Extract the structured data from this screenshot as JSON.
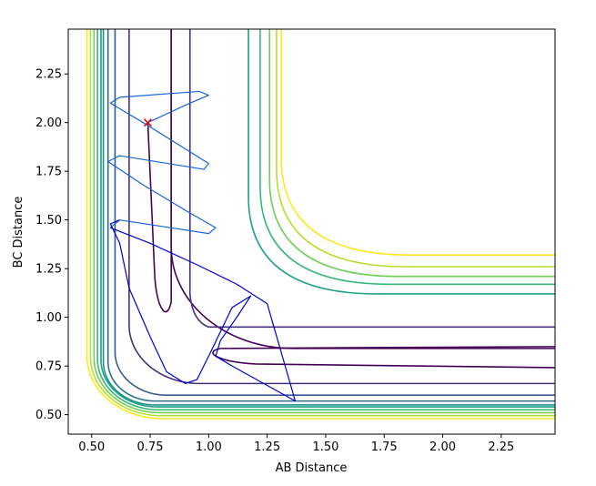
{
  "chart_data": {
    "type": "contour",
    "xlabel": "AB Distance",
    "ylabel": "BC Distance",
    "xlim": [
      0.4,
      2.48
    ],
    "ylim": [
      0.4,
      2.48
    ],
    "x_ticks": [
      "0.50",
      "0.75",
      "1.00",
      "1.25",
      "1.50",
      "1.75",
      "2.00",
      "2.25"
    ],
    "y_ticks": [
      "0.50",
      "0.75",
      "1.00",
      "1.25",
      "1.50",
      "1.75",
      "2.00",
      "2.25"
    ],
    "grid": false,
    "marker": {
      "x": 0.74,
      "y": 2.0,
      "symbol": "x",
      "color": "#e8000b"
    },
    "contour_levels": [
      {
        "name": "level-1",
        "color": "#440154",
        "trough": 0.84,
        "r": 0.52
      },
      {
        "name": "level-2",
        "color": "#46307e",
        "trough": 0.66,
        "r": 0.3
      },
      {
        "name": "level-3",
        "color": "#365c8d",
        "trough": 0.6,
        "r": 0.22
      },
      {
        "name": "level-4",
        "color": "#2c728e",
        "trough": 0.57,
        "r": 0.2
      },
      {
        "name": "level-5",
        "color": "#21908d",
        "trough": 0.55,
        "r": 0.22
      },
      {
        "name": "level-6",
        "color": "#1fa188",
        "trough": 0.54,
        "r": 0.24
      },
      {
        "name": "level-7",
        "color": "#35b779",
        "trough": 0.525,
        "r": 0.26
      },
      {
        "name": "level-8",
        "color": "#6ece58",
        "trough": 0.51,
        "r": 0.28
      },
      {
        "name": "level-9",
        "color": "#b5de2b",
        "trough": 0.495,
        "r": 0.3
      },
      {
        "name": "level-10",
        "color": "#fde725",
        "trough": 0.48,
        "r": 0.32
      }
    ],
    "outer_levels": [
      {
        "name": "outer-1",
        "color": "#1fa188",
        "x0": 1.17,
        "y0": 1.12
      },
      {
        "name": "outer-2",
        "color": "#35b779",
        "x0": 1.22,
        "y0": 1.17
      },
      {
        "name": "outer-3",
        "color": "#6ece58",
        "x0": 1.26,
        "y0": 1.21
      },
      {
        "name": "outer-4",
        "color": "#b5de2b",
        "x0": 1.29,
        "y0": 1.26
      },
      {
        "name": "outer-5",
        "color": "#fde725",
        "x0": 1.31,
        "y0": 1.32
      }
    ],
    "trajectory": {
      "color_start": "#1565d8",
      "color_end": "#0000cc",
      "points": [
        [
          0.74,
          2.0
        ],
        [
          0.92,
          2.1
        ],
        [
          1.0,
          2.14
        ],
        [
          0.96,
          2.16
        ],
        [
          0.62,
          2.13
        ],
        [
          0.58,
          2.1
        ],
        [
          0.72,
          2.0
        ],
        [
          0.88,
          1.88
        ],
        [
          1.0,
          1.79
        ],
        [
          0.98,
          1.76
        ],
        [
          0.62,
          1.83
        ],
        [
          0.57,
          1.8
        ],
        [
          0.72,
          1.68
        ],
        [
          0.9,
          1.55
        ],
        [
          1.03,
          1.46
        ],
        [
          1.0,
          1.43
        ],
        [
          0.62,
          1.5
        ],
        [
          0.58,
          1.46
        ],
        [
          0.75,
          1.38
        ],
        [
          0.95,
          1.27
        ],
        [
          1.12,
          1.17
        ],
        [
          1.25,
          1.07
        ],
        [
          1.37,
          0.57
        ],
        [
          1.25,
          0.65
        ],
        [
          1.1,
          0.75
        ],
        [
          1.03,
          0.8
        ],
        [
          1.05,
          0.88
        ],
        [
          1.12,
          1.0
        ],
        [
          1.18,
          1.11
        ],
        [
          1.1,
          1.05
        ],
        [
          1.0,
          0.8
        ],
        [
          0.95,
          0.68
        ],
        [
          0.9,
          0.66
        ],
        [
          0.82,
          0.72
        ],
        [
          0.75,
          0.9
        ],
        [
          0.66,
          1.15
        ],
        [
          0.62,
          1.38
        ],
        [
          0.58,
          1.48
        ],
        [
          0.62,
          1.5
        ]
      ]
    }
  }
}
